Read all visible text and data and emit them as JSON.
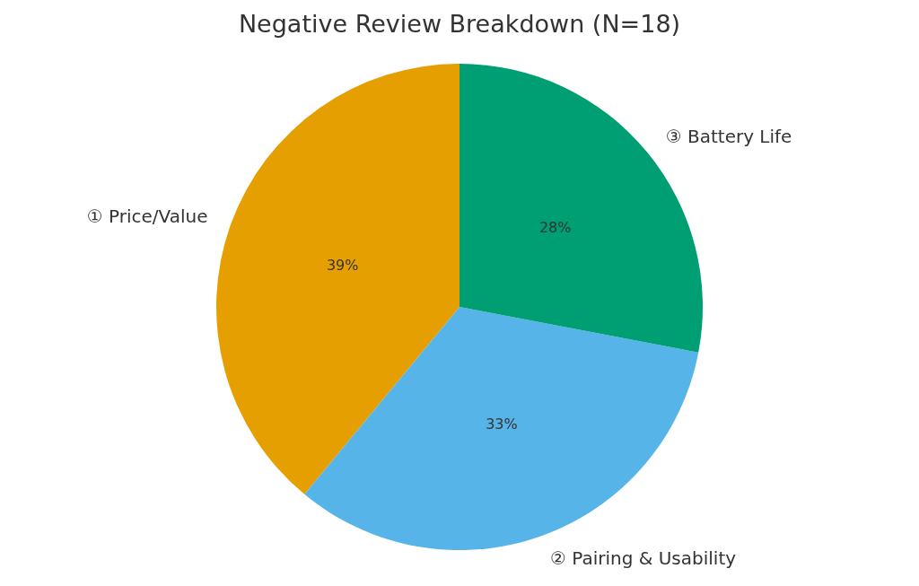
{
  "chart_data": {
    "type": "pie",
    "title": "Negative Review Breakdown (N=18)",
    "categories": [
      "① Price/Value",
      "② Pairing & Usability",
      "③ Battery Life"
    ],
    "values": [
      39,
      33,
      28
    ],
    "colors": [
      "#e69f00",
      "#56b4e9",
      "#009e73"
    ],
    "value_labels": [
      "39%",
      "33%",
      "28%"
    ]
  }
}
